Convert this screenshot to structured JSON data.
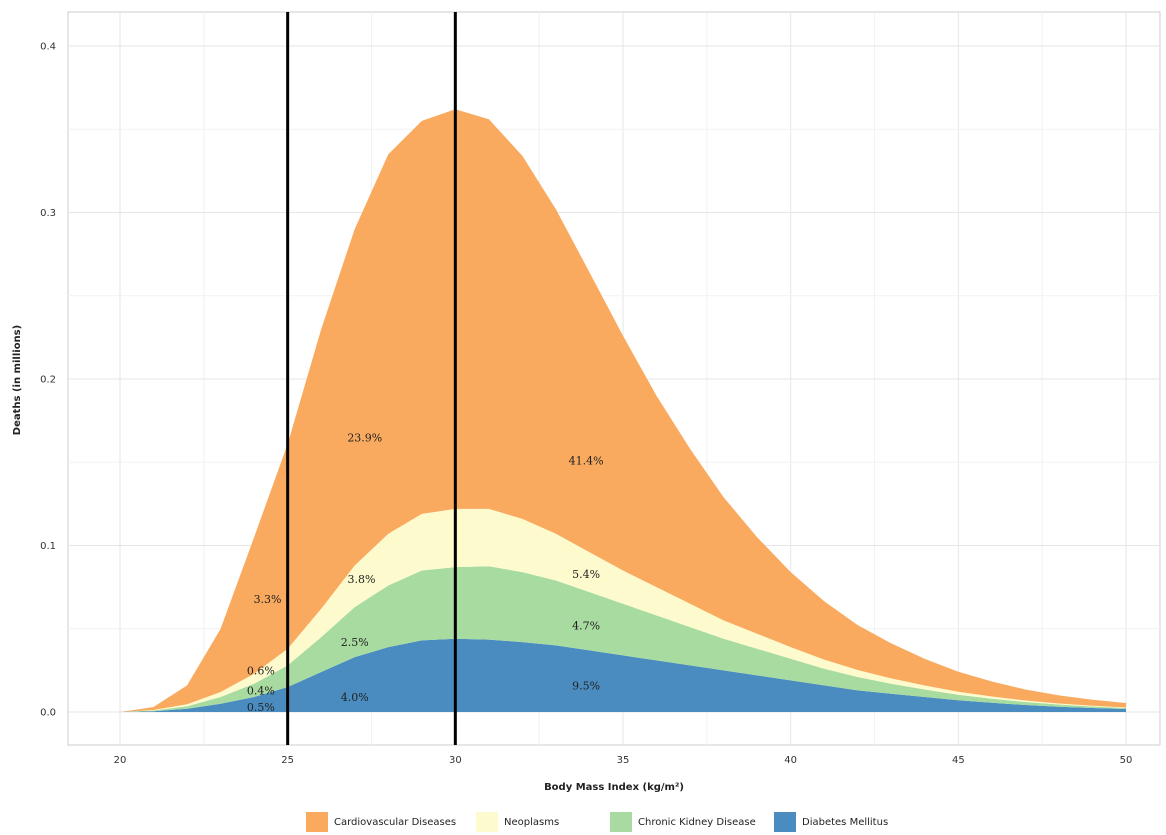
{
  "chart_data": {
    "type": "area",
    "title": "",
    "xlabel": "Body Mass Index (kg/m²)",
    "ylabel": "Deaths (in millions)",
    "xlim": [
      20,
      50
    ],
    "ylim": [
      0,
      0.4
    ],
    "x_ticks": [
      "20",
      "25",
      "30",
      "35",
      "40",
      "45",
      "50"
    ],
    "y_ticks": [
      "0.0",
      "0.1",
      "0.2",
      "0.3",
      "0.4"
    ],
    "x": [
      20,
      21,
      22,
      23,
      24,
      25,
      26,
      27,
      28,
      29,
      30,
      31,
      32,
      33,
      34,
      35,
      36,
      37,
      38,
      39,
      40,
      41,
      42,
      43,
      44,
      45,
      46,
      47,
      48,
      49,
      50
    ],
    "stacked": true,
    "series": [
      {
        "name": "Diabetes Mellitus",
        "color": "#4a8cbf",
        "values": [
          0.0,
          0.0005,
          0.002,
          0.005,
          0.009,
          0.015,
          0.024,
          0.033,
          0.039,
          0.043,
          0.044,
          0.0435,
          0.042,
          0.04,
          0.037,
          0.034,
          0.031,
          0.028,
          0.025,
          0.022,
          0.019,
          0.016,
          0.013,
          0.011,
          0.009,
          0.007,
          0.0055,
          0.0042,
          0.0032,
          0.0024,
          0.0018
        ]
      },
      {
        "name": "Chronic Kidney Disease",
        "color": "#a8dba0",
        "values": [
          0.0,
          0.0004,
          0.0015,
          0.004,
          0.008,
          0.013,
          0.021,
          0.03,
          0.037,
          0.042,
          0.043,
          0.044,
          0.042,
          0.039,
          0.035,
          0.031,
          0.027,
          0.023,
          0.019,
          0.016,
          0.013,
          0.01,
          0.008,
          0.006,
          0.0045,
          0.0034,
          0.0025,
          0.0018,
          0.0013,
          0.0009,
          0.0006
        ]
      },
      {
        "name": "Neoplasms",
        "color": "#fdfbcd",
        "values": [
          0.0,
          0.0003,
          0.0012,
          0.003,
          0.006,
          0.01,
          0.017,
          0.025,
          0.031,
          0.034,
          0.035,
          0.0345,
          0.032,
          0.028,
          0.024,
          0.02,
          0.017,
          0.014,
          0.011,
          0.009,
          0.007,
          0.0055,
          0.0042,
          0.0032,
          0.0024,
          0.0018,
          0.0013,
          0.0009,
          0.0006,
          0.0004,
          0.0003
        ]
      },
      {
        "name": "Cardiovascular Diseases",
        "color": "#f9aa5f",
        "values": [
          0.0,
          0.0018,
          0.0113,
          0.038,
          0.082,
          0.123,
          0.168,
          0.202,
          0.228,
          0.236,
          0.24,
          0.234,
          0.218,
          0.195,
          0.168,
          0.141,
          0.115,
          0.093,
          0.074,
          0.058,
          0.045,
          0.035,
          0.027,
          0.021,
          0.016,
          0.012,
          0.009,
          0.0066,
          0.0049,
          0.0036,
          0.0027
        ]
      }
    ],
    "vlines": [
      25,
      30
    ],
    "annotations": [
      {
        "text": "23.9%",
        "x": 27.3,
        "y": 0.165
      },
      {
        "text": "41.4%",
        "x": 33.9,
        "y": 0.151
      },
      {
        "text": "3.3%",
        "x": 24.4,
        "y": 0.068
      },
      {
        "text": "3.8%",
        "x": 27.2,
        "y": 0.08
      },
      {
        "text": "5.4%",
        "x": 33.9,
        "y": 0.083
      },
      {
        "text": "2.5%",
        "x": 27.0,
        "y": 0.042
      },
      {
        "text": "4.7%",
        "x": 33.9,
        "y": 0.052
      },
      {
        "text": "0.6%",
        "x": 24.2,
        "y": 0.025
      },
      {
        "text": "0.4%",
        "x": 24.2,
        "y": 0.013
      },
      {
        "text": "4.0%",
        "x": 27.0,
        "y": 0.009
      },
      {
        "text": "9.5%",
        "x": 33.9,
        "y": 0.016
      },
      {
        "text": "0.5%",
        "x": 24.2,
        "y": 0.003
      }
    ],
    "grid": true,
    "legend_position": "bottom"
  },
  "legend": [
    {
      "label": "Cardiovascular Diseases",
      "color": "#f9aa5f"
    },
    {
      "label": "Neoplasms",
      "color": "#fdfbcd"
    },
    {
      "label": "Chronic Kidney Disease",
      "color": "#a8dba0"
    },
    {
      "label": "Diabetes Mellitus",
      "color": "#4a8cbf"
    }
  ]
}
